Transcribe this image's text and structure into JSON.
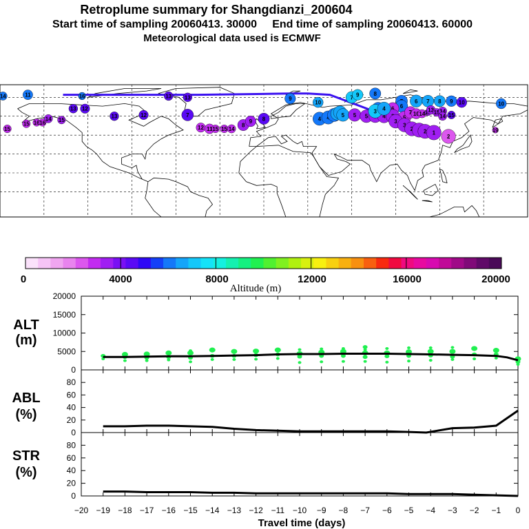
{
  "header": {
    "title": "Retroplume summary for Shangdianzi_200604",
    "subtitle": "Start time of sampling 20060413. 30000     End time of sampling 20060413. 60000",
    "met_note": "Meteorological data used is ECMWF"
  },
  "colors": {
    "colorbar": [
      "#fbe2fb",
      "#f6c4f6",
      "#f0a6f0",
      "#e984ee",
      "#dc57ee",
      "#c22cf0",
      "#a01ef2",
      "#7a10f4",
      "#5a0af5",
      "#2e08f6",
      "#1440f8",
      "#1478f9",
      "#14a5fa",
      "#14c8fa",
      "#14e3f8",
      "#14f0e0",
      "#14f0b0",
      "#14f080",
      "#20f050",
      "#50f030",
      "#80f020",
      "#b0f010",
      "#d8f010",
      "#f8f010",
      "#f8d010",
      "#f8b010",
      "#f89010",
      "#f86010",
      "#f82a10",
      "#f00a40",
      "#f00a80",
      "#e80aa0",
      "#d80ab0",
      "#c00a98",
      "#a00a88",
      "#800a78",
      "#600a68",
      "#4a0a58"
    ],
    "trajectory": "#3a10f0",
    "altitude_dots": "#20f050"
  },
  "colorbar": {
    "tick_labels": [
      "0",
      "4000",
      "8000",
      "12000",
      "16000",
      "20000"
    ],
    "label": "Altitude (m)"
  },
  "map": {
    "bubbles": [
      {
        "lon": -178,
        "lat": 76,
        "label": "14",
        "color": "#1478f9"
      },
      {
        "lon": -161,
        "lat": 77,
        "label": "11",
        "color": "#1478f9"
      },
      {
        "lon": -124,
        "lat": 76,
        "label": "16",
        "color": "#1478f9"
      },
      {
        "lon": -65,
        "lat": 76,
        "label": "13",
        "color": "#5a0af5"
      },
      {
        "lon": -52,
        "lat": 75,
        "label": "13",
        "color": "#5a0af5"
      },
      {
        "lon": 60,
        "lat": 75,
        "label": "7",
        "color": "#14c8fa"
      },
      {
        "lon": 64,
        "lat": 77,
        "label": "9",
        "color": "#14c8fa"
      },
      {
        "lon": 76,
        "lat": 78,
        "label": "8",
        "color": "#1478f9"
      },
      {
        "lon": 37,
        "lat": 71,
        "label": "10",
        "color": "#14a5fa"
      },
      {
        "lon": 18,
        "lat": 74,
        "label": "9",
        "color": "#1478f9"
      },
      {
        "lon": 94,
        "lat": 72,
        "label": "7",
        "color": "#1478f9"
      },
      {
        "lon": 104,
        "lat": 72,
        "label": "6",
        "color": "#14a5fa"
      },
      {
        "lon": 112,
        "lat": 72,
        "label": "7",
        "color": "#14a5fa"
      },
      {
        "lon": 120,
        "lat": 72,
        "label": "8",
        "color": "#14a5fa"
      },
      {
        "lon": 128,
        "lat": 72,
        "label": "9",
        "color": "#1478f9"
      },
      {
        "lon": 135,
        "lat": 71,
        "label": "10",
        "color": "#5a0af5"
      },
      {
        "lon": 162,
        "lat": 70,
        "label": "10",
        "color": "#1478f9"
      },
      {
        "lon": 94,
        "lat": 68,
        "label": "6",
        "color": "#1478f9"
      },
      {
        "lon": 88,
        "lat": 66,
        "label": "6",
        "color": "#c22cf0"
      },
      {
        "lon": 78,
        "lat": 66,
        "label": "5",
        "color": "#1478f9"
      },
      {
        "lon": -130,
        "lat": 66,
        "label": "13",
        "color": "#5a0af5"
      },
      {
        "lon": -122,
        "lat": 66,
        "label": "12",
        "color": "#5a0af5"
      },
      {
        "lon": -147,
        "lat": 58,
        "label": "14",
        "color": "#a01ef2"
      },
      {
        "lon": -162,
        "lat": 54,
        "label": "15",
        "color": "#c22cf0"
      },
      {
        "lon": -175,
        "lat": 50,
        "label": "15",
        "color": "#c22cf0"
      },
      {
        "lon": -155,
        "lat": 55,
        "label": "16",
        "color": "#c22cf0"
      },
      {
        "lon": -151,
        "lat": 55,
        "label": "16",
        "color": "#c22cf0"
      },
      {
        "lon": -138,
        "lat": 57,
        "label": "15",
        "color": "#a01ef2"
      },
      {
        "lon": -102,
        "lat": 60,
        "label": "13",
        "color": "#5a0af5"
      },
      {
        "lon": -82,
        "lat": 61,
        "label": "12",
        "color": "#5a0af5"
      },
      {
        "lon": -52,
        "lat": 61,
        "label": "7",
        "color": "#5a0af5"
      },
      {
        "lon": -43,
        "lat": 51,
        "label": "12",
        "color": "#c22cf0"
      },
      {
        "lon": -37,
        "lat": 50,
        "label": "11",
        "color": "#c22cf0"
      },
      {
        "lon": -33,
        "lat": 50,
        "label": "15",
        "color": "#c22cf0"
      },
      {
        "lon": -27,
        "lat": 50,
        "label": "15",
        "color": "#c22cf0"
      },
      {
        "lon": -22,
        "lat": 50,
        "label": "14",
        "color": "#c22cf0"
      },
      {
        "lon": -14,
        "lat": 53,
        "label": "8",
        "color": "#a01ef2"
      },
      {
        "lon": -9,
        "lat": 56,
        "label": "9",
        "color": "#a01ef2"
      },
      {
        "lon": 0,
        "lat": 58,
        "label": "8",
        "color": "#5a0af5"
      },
      {
        "lon": 38,
        "lat": 58,
        "label": "4",
        "color": "#1478f9"
      },
      {
        "lon": 44,
        "lat": 59,
        "label": "4",
        "color": "#1478f9"
      },
      {
        "lon": 48,
        "lat": 61,
        "label": "4",
        "color": "#1478f9"
      },
      {
        "lon": 50,
        "lat": 62,
        "label": "5",
        "color": "#14a5fa"
      },
      {
        "lon": 52,
        "lat": 63,
        "label": "4",
        "color": "#14a5fa"
      },
      {
        "lon": 54,
        "lat": 61,
        "label": "5",
        "color": "#14a5fa"
      },
      {
        "lon": 62,
        "lat": 61,
        "label": "5",
        "color": "#a01ef2"
      },
      {
        "lon": 70,
        "lat": 60,
        "label": "5",
        "color": "#a01ef2"
      },
      {
        "lon": 76,
        "lat": 60,
        "label": "5",
        "color": "#a01ef2"
      },
      {
        "lon": 82,
        "lat": 60,
        "label": "4",
        "color": "#a01ef2"
      },
      {
        "lon": 88,
        "lat": 60,
        "label": "3",
        "color": "#a01ef2"
      },
      {
        "lon": 76,
        "lat": 64,
        "label": "3",
        "color": "#14c8fa"
      },
      {
        "lon": 82,
        "lat": 66,
        "label": "4",
        "color": "#14a5fa"
      },
      {
        "lon": 96,
        "lat": 59,
        "label": "5",
        "color": "#c22cf0"
      },
      {
        "lon": 100,
        "lat": 63,
        "label": "7",
        "color": "#c22cf0"
      },
      {
        "lon": 104,
        "lat": 62,
        "label": "10",
        "color": "#c22cf0"
      },
      {
        "lon": 108,
        "lat": 62,
        "label": "14",
        "color": "#c22cf0"
      },
      {
        "lon": 112,
        "lat": 63,
        "label": "18",
        "color": "#a01ef2"
      },
      {
        "lon": 114,
        "lat": 65,
        "label": "13",
        "color": "#a01ef2"
      },
      {
        "lon": 118,
        "lat": 63,
        "label": "15",
        "color": "#a01ef2"
      },
      {
        "lon": 122,
        "lat": 64,
        "label": "14",
        "color": "#a01ef2"
      },
      {
        "lon": 128,
        "lat": 61,
        "label": "15",
        "color": "#5a0af5"
      },
      {
        "lon": 122,
        "lat": 60,
        "label": "14",
        "color": "#a01ef2"
      },
      {
        "lon": 90,
        "lat": 56,
        "label": "3",
        "color": "#a01ef2"
      },
      {
        "lon": 96,
        "lat": 53,
        "label": "3",
        "color": "#a01ef2"
      },
      {
        "lon": 101,
        "lat": 50,
        "label": "2",
        "color": "#a01ef2"
      },
      {
        "lon": 106,
        "lat": 49,
        "label": "2",
        "color": "#a01ef2"
      },
      {
        "lon": 110,
        "lat": 48,
        "label": "2",
        "color": "#a01ef2"
      },
      {
        "lon": 116,
        "lat": 47,
        "label": "1",
        "color": "#a01ef2"
      },
      {
        "lon": 126,
        "lat": 44,
        "label": "2",
        "color": "#dc57ee"
      },
      {
        "lon": 158,
        "lat": 49,
        "label": "19",
        "color": "#c22cf0"
      }
    ]
  },
  "chart_data": [
    {
      "type": "line",
      "panel": "ALT",
      "title": "ALT",
      "ylabel": "(m)",
      "xlabel": "Travel time (days)",
      "xlim": [
        -20,
        0
      ],
      "ylim": [
        0,
        20000
      ],
      "yticks": [
        "0",
        "5000",
        "10000",
        "15000",
        "20000"
      ],
      "x": [
        -19,
        -18,
        -17,
        -16,
        -15,
        -14,
        -13,
        -12,
        -11,
        -10,
        -9,
        -8,
        -7,
        -6,
        -5,
        -4,
        -3,
        -2,
        -1,
        -0.5,
        0
      ],
      "values": [
        3500,
        3500,
        3600,
        3700,
        3700,
        3800,
        3900,
        4000,
        4200,
        4300,
        4300,
        4400,
        4400,
        4400,
        4300,
        4200,
        4100,
        4000,
        3800,
        3400,
        2600
      ],
      "dot_columns": [
        {
          "x": -19,
          "y": [
            3000,
            3800
          ]
        },
        {
          "x": -18,
          "y": [
            2500,
            3500,
            4200
          ]
        },
        {
          "x": -17,
          "y": [
            2500,
            3300,
            4300
          ]
        },
        {
          "x": -16,
          "y": [
            2700,
            3500,
            4600
          ]
        },
        {
          "x": -15,
          "y": [
            2200,
            3300,
            4600,
            5200
          ]
        },
        {
          "x": -14,
          "y": [
            2800,
            3800,
            5400
          ]
        },
        {
          "x": -13,
          "y": [
            2800,
            3800,
            5000
          ]
        },
        {
          "x": -12,
          "y": [
            2900,
            4000,
            5100
          ]
        },
        {
          "x": -11,
          "y": [
            3100,
            4200,
            5400
          ]
        },
        {
          "x": -10,
          "y": [
            2000,
            3600,
            4400,
            5500
          ]
        },
        {
          "x": -9,
          "y": [
            2200,
            3800,
            4800,
            5700
          ]
        },
        {
          "x": -8,
          "y": [
            2300,
            3800,
            5000,
            5800
          ]
        },
        {
          "x": -7,
          "y": [
            2300,
            3500,
            4600,
            5500,
            6200
          ]
        },
        {
          "x": -6,
          "y": [
            2100,
            3700,
            4600,
            5800
          ]
        },
        {
          "x": -5,
          "y": [
            2400,
            3800,
            4900,
            6000
          ]
        },
        {
          "x": -4,
          "y": [
            2600,
            3900,
            5000,
            6000
          ]
        },
        {
          "x": -3,
          "y": [
            2800,
            3600,
            5000,
            6100
          ]
        },
        {
          "x": -2,
          "y": [
            3000,
            4200,
            5800
          ]
        },
        {
          "x": -1,
          "y": [
            3200,
            4200,
            5300
          ]
        },
        {
          "x": 0,
          "y": [
            1500,
            2200,
            3000
          ]
        }
      ]
    },
    {
      "type": "line",
      "panel": "ABL",
      "title": "ABL",
      "ylabel": "(%)",
      "xlim": [
        -20,
        0
      ],
      "ylim": [
        0,
        100
      ],
      "yticks": [
        "0",
        "20",
        "40",
        "60",
        "80"
      ],
      "x": [
        -19,
        -18,
        -17,
        -16,
        -15,
        -14,
        -13,
        -12,
        -11,
        -10,
        -9,
        -8,
        -7,
        -6,
        -5,
        -4.2,
        -3,
        -2,
        -1,
        0
      ],
      "values": [
        10,
        10,
        11,
        11,
        10,
        9,
        6,
        4,
        3,
        2,
        2,
        2,
        2,
        2,
        1,
        0,
        7,
        8,
        11,
        35
      ]
    },
    {
      "type": "line",
      "panel": "STR",
      "title": "STR",
      "ylabel": "(%)",
      "xlim": [
        -20,
        0
      ],
      "ylim": [
        0,
        100
      ],
      "yticks": [
        "0",
        "20",
        "40",
        "60",
        "80"
      ],
      "x": [
        -19,
        -18,
        -17,
        -16,
        -15,
        -14,
        -13,
        -12,
        -11,
        -10,
        -9,
        -8,
        -7,
        -6,
        -5,
        -4,
        -3,
        -2,
        -1,
        0
      ],
      "values": [
        7,
        7,
        6,
        6,
        6,
        5,
        5,
        4,
        4,
        4,
        4,
        4,
        4,
        4,
        3,
        3,
        3,
        2,
        1,
        0
      ]
    }
  ],
  "xaxis": {
    "tick_labels": [
      "−20",
      "−19",
      "−18",
      "−17",
      "−16",
      "−15",
      "−14",
      "−13",
      "−12",
      "−11",
      "−10",
      "−9",
      "−8",
      "−7",
      "−6",
      "−5",
      "−4",
      "−3",
      "−2",
      "−1",
      "0"
    ],
    "label": "Travel time (days)"
  }
}
